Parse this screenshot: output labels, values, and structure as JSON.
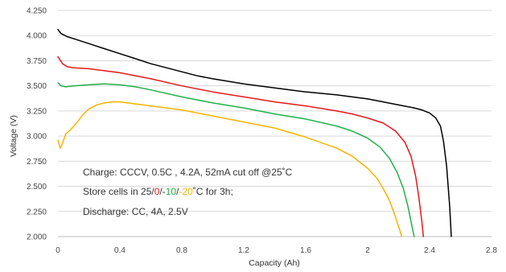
{
  "chart_data": {
    "type": "line",
    "xlabel": "Capacity (Ah)",
    "ylabel": "Voltage (V)",
    "xlim": [
      0,
      2.8
    ],
    "ylim": [
      2.0,
      4.25
    ],
    "x_ticks": [
      "0",
      "0.4",
      "0.8",
      "1.2",
      "1.6",
      "2",
      "2.4",
      "2.8"
    ],
    "x_tick_values": [
      0,
      0.4,
      0.8,
      1.2,
      1.6,
      2.0,
      2.4,
      2.8
    ],
    "y_ticks": [
      "2.000",
      "2.250",
      "2.500",
      "2.750",
      "3.000",
      "3.250",
      "3.500",
      "3.750",
      "4.000",
      "4.250"
    ],
    "y_tick_values": [
      2.0,
      2.25,
      2.5,
      2.75,
      3.0,
      3.25,
      3.5,
      3.75,
      4.0,
      4.25
    ],
    "grid": "horizontal",
    "legend": "none",
    "series": [
      {
        "color": "#000000",
        "x": [
          0,
          0.02,
          0.06,
          0.12,
          0.2,
          0.3,
          0.4,
          0.5,
          0.6,
          0.7,
          0.8,
          0.9,
          1.0,
          1.2,
          1.4,
          1.6,
          1.8,
          2.0,
          2.1,
          2.2,
          2.3,
          2.35,
          2.4,
          2.44,
          2.47,
          2.49,
          2.51,
          2.53,
          2.54
        ],
        "y": [
          4.06,
          4.02,
          3.99,
          3.96,
          3.92,
          3.87,
          3.82,
          3.77,
          3.72,
          3.68,
          3.64,
          3.6,
          3.57,
          3.52,
          3.48,
          3.44,
          3.41,
          3.37,
          3.34,
          3.31,
          3.28,
          3.26,
          3.23,
          3.18,
          3.1,
          2.95,
          2.7,
          2.3,
          2.0
        ]
      },
      {
        "color": "#e31a1c",
        "x": [
          0,
          0.03,
          0.06,
          0.1,
          0.2,
          0.3,
          0.4,
          0.6,
          0.8,
          1.0,
          1.2,
          1.4,
          1.6,
          1.8,
          1.9,
          2.0,
          2.1,
          2.18,
          2.24,
          2.28,
          2.31,
          2.33,
          2.35,
          2.36
        ],
        "y": [
          3.79,
          3.72,
          3.69,
          3.68,
          3.67,
          3.65,
          3.63,
          3.57,
          3.5,
          3.44,
          3.39,
          3.34,
          3.3,
          3.25,
          3.22,
          3.18,
          3.13,
          3.05,
          2.94,
          2.8,
          2.6,
          2.4,
          2.15,
          2.0
        ]
      },
      {
        "color": "#22b04b",
        "x": [
          0,
          0.02,
          0.05,
          0.1,
          0.2,
          0.3,
          0.4,
          0.5,
          0.6,
          0.8,
          1.0,
          1.2,
          1.4,
          1.6,
          1.8,
          1.9,
          2.0,
          2.08,
          2.14,
          2.19,
          2.23,
          2.26,
          2.28,
          2.3
        ],
        "y": [
          3.53,
          3.5,
          3.49,
          3.5,
          3.51,
          3.52,
          3.51,
          3.49,
          3.46,
          3.39,
          3.33,
          3.28,
          3.22,
          3.17,
          3.1,
          3.05,
          2.98,
          2.89,
          2.78,
          2.64,
          2.48,
          2.3,
          2.15,
          2.0
        ]
      },
      {
        "color": "#f5b400",
        "x": [
          0,
          0.015,
          0.03,
          0.05,
          0.08,
          0.12,
          0.16,
          0.2,
          0.25,
          0.3,
          0.35,
          0.4,
          0.5,
          0.6,
          0.8,
          1.0,
          1.2,
          1.4,
          1.6,
          1.8,
          1.9,
          2.0,
          2.06,
          2.1,
          2.14,
          2.17,
          2.2,
          2.22
        ],
        "y": [
          2.96,
          2.88,
          2.93,
          3.02,
          3.06,
          3.13,
          3.21,
          3.27,
          3.31,
          3.33,
          3.34,
          3.34,
          3.32,
          3.3,
          3.26,
          3.2,
          3.14,
          3.08,
          2.99,
          2.88,
          2.8,
          2.68,
          2.58,
          2.48,
          2.36,
          2.24,
          2.1,
          2.0
        ]
      }
    ],
    "annotations": {
      "line1": "Charge: CCCV, 0.5C , 4.2A, 52mA cut off @25˚C",
      "line2_prefix": "Store cells in 25/",
      "line2_t1": "0",
      "line2_sep1": "/-",
      "line2_t2": "10",
      "line2_sep2": "/",
      "line2_t3": "-20",
      "line2_suffix": "˚C for 3h;",
      "line3": "Discharge: CC, 4A, 2.5V",
      "colors": {
        "t1": "#e31a1c",
        "t2": "#22b04b",
        "t3": "#f5b400"
      }
    }
  }
}
